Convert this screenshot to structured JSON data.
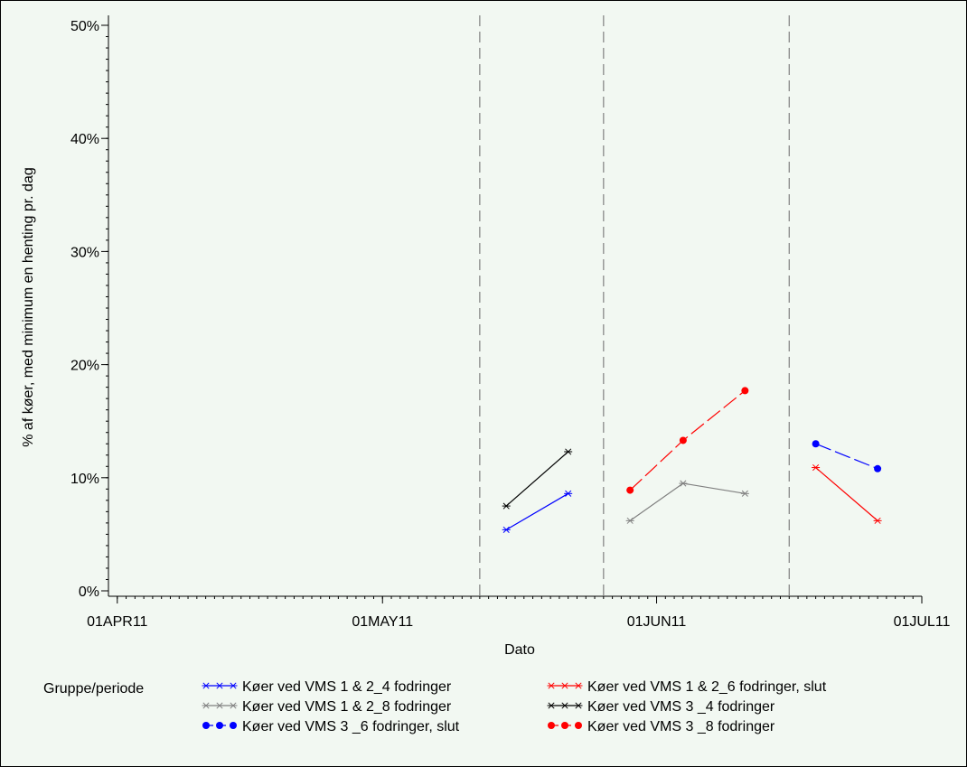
{
  "chart_data": {
    "type": "line",
    "xlabel": "Dato",
    "ylabel": "% af køer, med minimum en henting pr. dag",
    "x_range": [
      "2011-03-31",
      "2011-07-01"
    ],
    "ylim": [
      0,
      50
    ],
    "x_ticks": [
      {
        "date": "2011-04-01",
        "label": "01APR11"
      },
      {
        "date": "2011-05-01",
        "label": "01MAY11"
      },
      {
        "date": "2011-06-01",
        "label": "01JUN11"
      },
      {
        "date": "2011-07-01",
        "label": "01JUL11"
      }
    ],
    "y_ticks": [
      {
        "value": 0,
        "label": "0%"
      },
      {
        "value": 10,
        "label": "10%"
      },
      {
        "value": 20,
        "label": "20%"
      },
      {
        "value": 30,
        "label": "30%"
      },
      {
        "value": 40,
        "label": "40%"
      },
      {
        "value": 50,
        "label": "50%"
      }
    ],
    "reference_lines": [
      "2011-05-12",
      "2011-05-26",
      "2011-06-16"
    ],
    "legend_title": "Gruppe/periode",
    "legend_placement": "bottom",
    "series": [
      {
        "name": "Køer ved VMS 1 & 2_4 fodringer",
        "color": "#0000ff",
        "marker": "star",
        "dashed": false,
        "points": [
          {
            "x": "2011-05-15",
            "y": 5.4
          },
          {
            "x": "2011-05-22",
            "y": 8.6
          }
        ]
      },
      {
        "name": "Køer ved VMS 1 & 2_6 fodringer, slut",
        "color": "#ff0000",
        "marker": "star",
        "dashed": false,
        "points": [
          {
            "x": "2011-06-19",
            "y": 10.9
          },
          {
            "x": "2011-06-26",
            "y": 6.2
          }
        ]
      },
      {
        "name": "Køer ved VMS 1 & 2_8 fodringer",
        "color": "#808080",
        "marker": "star",
        "dashed": false,
        "points": [
          {
            "x": "2011-05-29",
            "y": 6.2
          },
          {
            "x": "2011-06-04",
            "y": 9.5
          },
          {
            "x": "2011-06-11",
            "y": 8.6
          }
        ]
      },
      {
        "name": "Køer ved VMS 3 _4 fodringer",
        "color": "#000000",
        "marker": "star",
        "dashed": false,
        "points": [
          {
            "x": "2011-05-15",
            "y": 7.5
          },
          {
            "x": "2011-05-22",
            "y": 12.3
          }
        ]
      },
      {
        "name": "Køer ved VMS 3 _6 fodringer, slut",
        "color": "#0000ff",
        "marker": "dot",
        "dashed": true,
        "points": [
          {
            "x": "2011-06-19",
            "y": 13
          },
          {
            "x": "2011-06-26",
            "y": 10.8
          }
        ]
      },
      {
        "name": "Køer ved VMS 3 _8 fodringer",
        "color": "#ff0000",
        "marker": "dot",
        "dashed": true,
        "points": [
          {
            "x": "2011-05-29",
            "y": 8.9
          },
          {
            "x": "2011-06-04",
            "y": 13.3
          },
          {
            "x": "2011-06-11",
            "y": 17.7
          }
        ]
      }
    ]
  }
}
